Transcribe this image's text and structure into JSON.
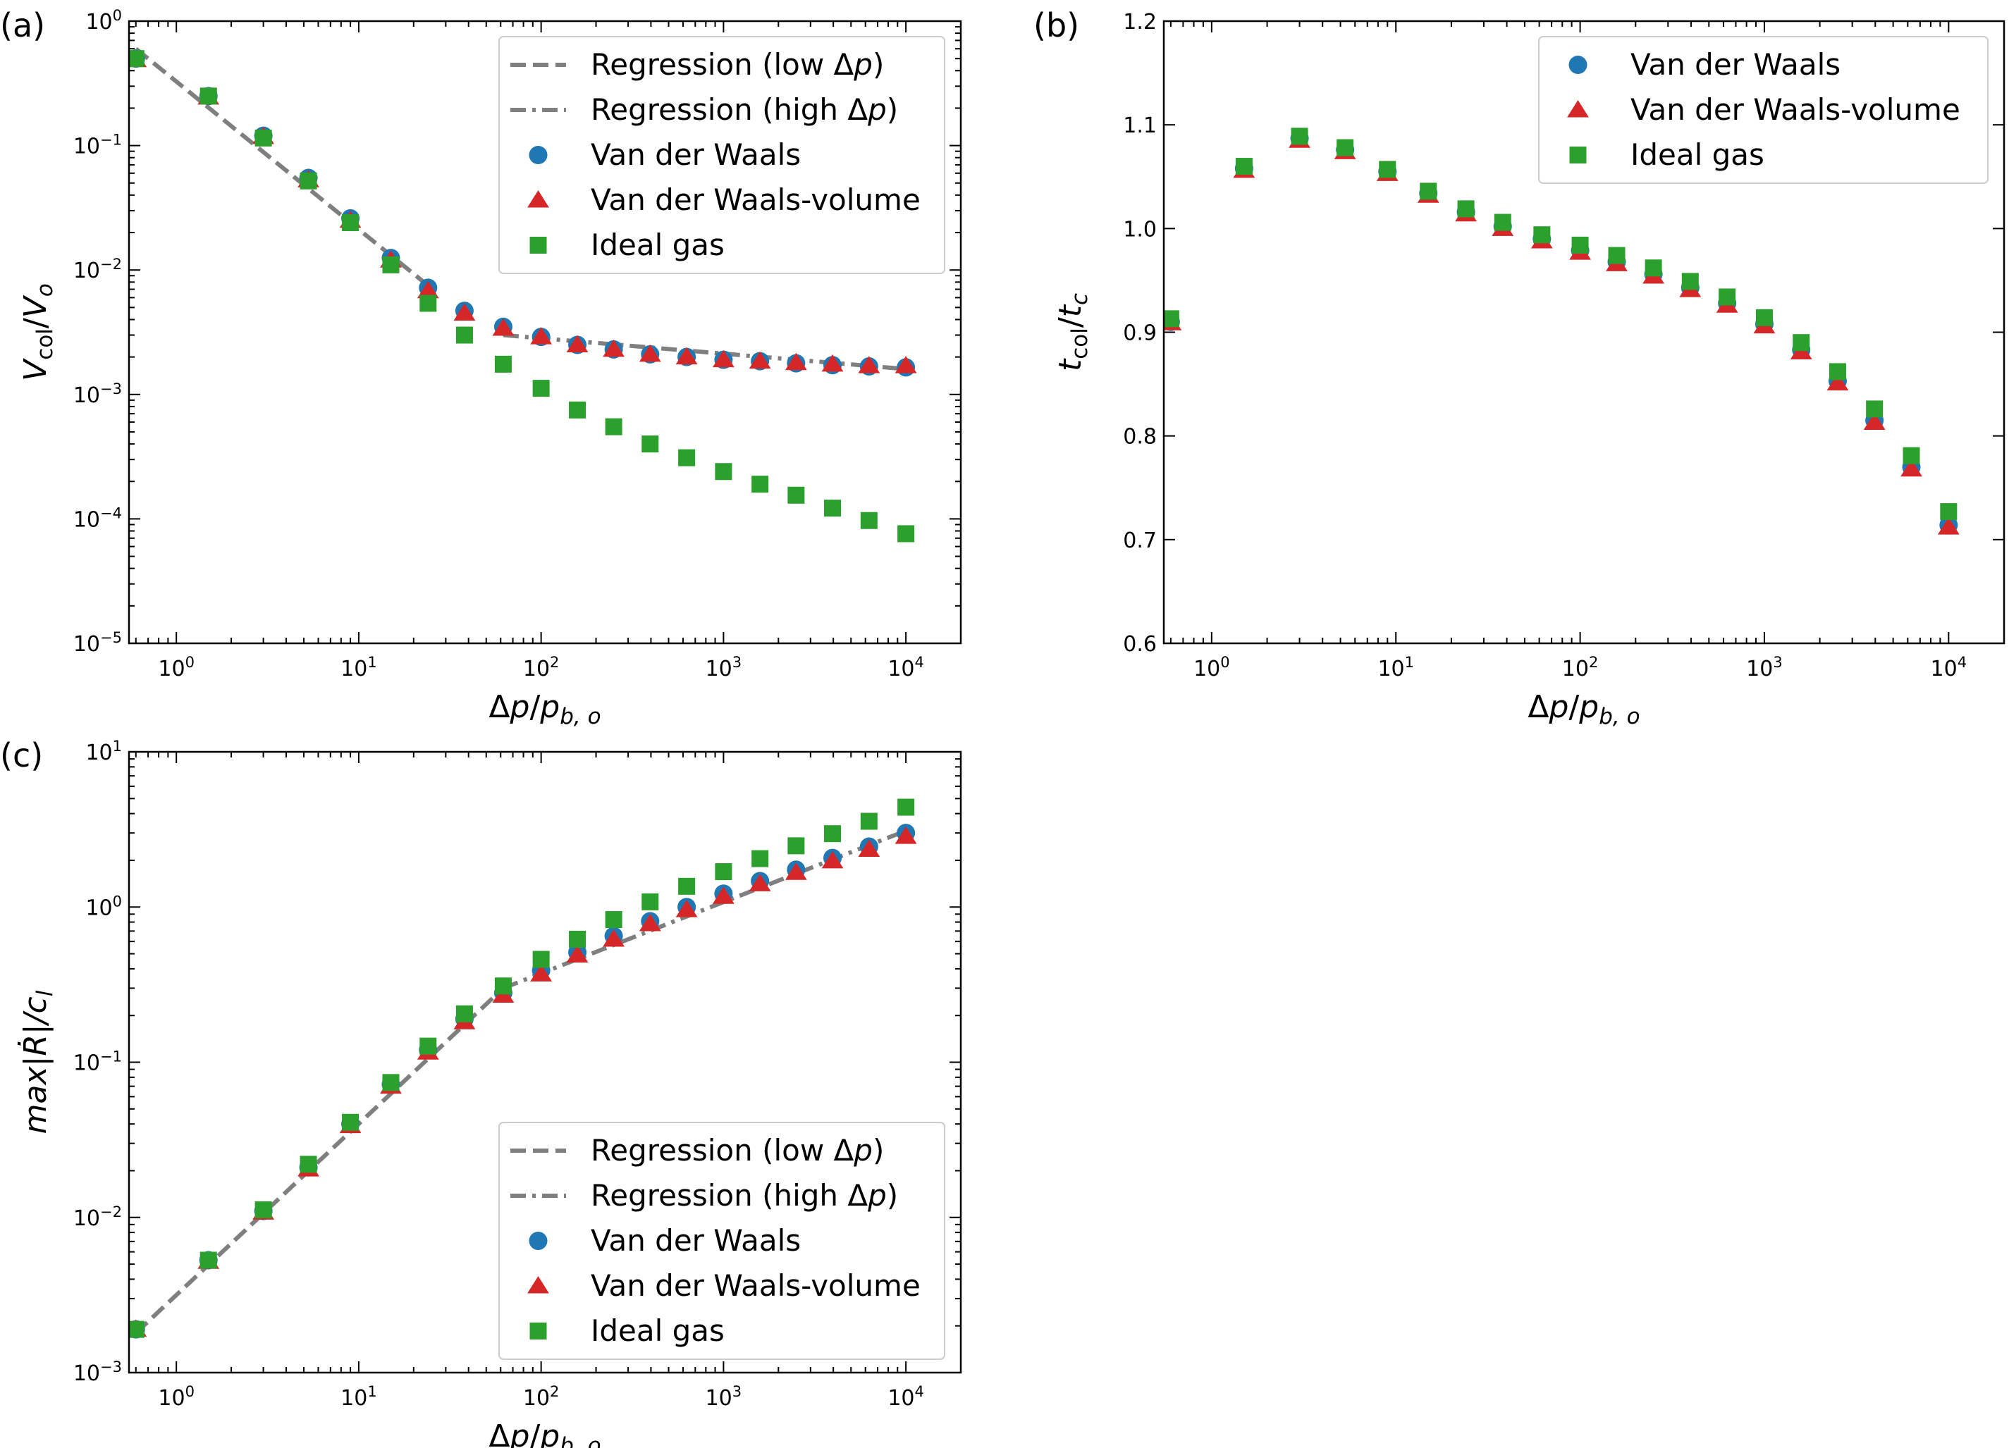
{
  "colors": {
    "vdw": "#1f77b4",
    "vdw_volume": "#d62728",
    "ideal": "#2ca02c",
    "regression": "#7f7f7f",
    "axes": "#000000",
    "legend_edge": "#cccccc"
  },
  "legend_labels": {
    "reg_low": "Regression (low Δp)",
    "reg_high": "Regression (high Δp)",
    "vdw": "Van der Waals",
    "vdw_volume": "Van der Waals-volume",
    "ideal": "Ideal gas"
  },
  "chart_data": [
    {
      "panel": "(a)",
      "type": "scatter",
      "xscale": "log",
      "yscale": "log",
      "xlim": [
        0.55,
        20000
      ],
      "ylim": [
        1e-05,
        1
      ],
      "x_ticks": [
        {
          "value": 1,
          "base": "10",
          "exp": "0"
        },
        {
          "value": 10,
          "base": "10",
          "exp": "1"
        },
        {
          "value": 100,
          "base": "10",
          "exp": "2"
        },
        {
          "value": 1000,
          "base": "10",
          "exp": "3"
        },
        {
          "value": 10000,
          "base": "10",
          "exp": "4"
        }
      ],
      "y_ticks": [
        {
          "value": 1e-05,
          "base": "10",
          "exp": "−5"
        },
        {
          "value": 0.0001,
          "base": "10",
          "exp": "−4"
        },
        {
          "value": 0.001,
          "base": "10",
          "exp": "−3"
        },
        {
          "value": 0.01,
          "base": "10",
          "exp": "−2"
        },
        {
          "value": 0.1,
          "base": "10",
          "exp": "−1"
        },
        {
          "value": 1,
          "base": "10",
          "exp": "0"
        }
      ],
      "xlabel": {
        "main": "Δp/p",
        "sub": "b, o"
      },
      "ylabel": {
        "main": "V",
        "sub1": "col",
        "mid": "/V",
        "sub2": "o"
      },
      "legend": {
        "position": "upper right",
        "entries": [
          "reg_low",
          "reg_high",
          "vdw",
          "vdw_volume",
          "ideal"
        ]
      },
      "x": [
        0.6,
        1.5,
        3.0,
        5.3,
        9.0,
        15,
        24,
        38,
        62,
        100,
        158,
        250,
        396,
        628,
        1000,
        1585,
        2500,
        3960,
        6280,
        10000
      ],
      "series": [
        {
          "key": "vdw",
          "marker": "circle",
          "values": [
            0.5,
            0.25,
            0.12,
            0.055,
            0.026,
            0.0125,
            0.0072,
            0.0047,
            0.0035,
            0.0029,
            0.0025,
            0.0023,
            0.0021,
            0.002,
            0.0019,
            0.00185,
            0.00178,
            0.00172,
            0.00168,
            0.00165
          ]
        },
        {
          "key": "vdw_volume",
          "marker": "triangle",
          "values": [
            0.49,
            0.245,
            0.118,
            0.053,
            0.025,
            0.012,
            0.0068,
            0.0045,
            0.0034,
            0.0029,
            0.0025,
            0.0023,
            0.0021,
            0.002,
            0.0019,
            0.00185,
            0.0018,
            0.00175,
            0.0017,
            0.0017
          ]
        },
        {
          "key": "ideal",
          "marker": "square",
          "values": [
            0.5,
            0.25,
            0.115,
            0.052,
            0.024,
            0.011,
            0.0054,
            0.003,
            0.00175,
            0.00112,
            0.00075,
            0.00055,
            0.0004,
            0.00031,
            0.00024,
            0.00019,
            0.000155,
            0.000122,
            9.7e-05,
            7.6e-05
          ]
        }
      ],
      "lines": [
        {
          "key": "reg_low",
          "dash": "dashed",
          "points": [
            [
              0.6,
              0.6
            ],
            [
              24,
              0.0075
            ]
          ]
        },
        {
          "key": "reg_high",
          "dash": "dashdot",
          "points": [
            [
              62,
              0.003
            ],
            [
              10000,
              0.0016
            ]
          ]
        }
      ]
    },
    {
      "panel": "(b)",
      "type": "scatter",
      "xscale": "log",
      "yscale": "linear",
      "xlim": [
        0.55,
        20000
      ],
      "ylim": [
        0.6,
        1.2
      ],
      "x_ticks": [
        {
          "value": 1,
          "base": "10",
          "exp": "0"
        },
        {
          "value": 10,
          "base": "10",
          "exp": "1"
        },
        {
          "value": 100,
          "base": "10",
          "exp": "2"
        },
        {
          "value": 1000,
          "base": "10",
          "exp": "3"
        },
        {
          "value": 10000,
          "base": "10",
          "exp": "4"
        }
      ],
      "y_ticks": [
        {
          "value": 0.6,
          "label": "0.6"
        },
        {
          "value": 0.7,
          "label": "0.7"
        },
        {
          "value": 0.8,
          "label": "0.8"
        },
        {
          "value": 0.9,
          "label": "0.9"
        },
        {
          "value": 1.0,
          "label": "1.0"
        },
        {
          "value": 1.1,
          "label": "1.1"
        },
        {
          "value": 1.2,
          "label": "1.2"
        }
      ],
      "xlabel": {
        "main": "Δp/p",
        "sub": "b, o"
      },
      "ylabel": {
        "main": "t",
        "sub1": "col",
        "mid": "/t",
        "sub2": "c"
      },
      "legend": {
        "position": "upper right",
        "entries": [
          "vdw",
          "vdw_volume",
          "ideal"
        ]
      },
      "x": [
        0.6,
        1.5,
        3.0,
        5.3,
        9.0,
        15,
        24,
        38,
        62,
        100,
        158,
        250,
        396,
        628,
        1000,
        1585,
        2500,
        3960,
        6280,
        10000
      ],
      "series": [
        {
          "key": "vdw",
          "marker": "circle",
          "values": [
            0.91,
            1.058,
            1.087,
            1.076,
            1.055,
            1.034,
            1.016,
            1.002,
            0.99,
            0.979,
            0.968,
            0.956,
            0.943,
            0.928,
            0.908,
            0.883,
            0.853,
            0.815,
            0.77,
            0.714
          ]
        },
        {
          "key": "vdw_volume",
          "marker": "triangle",
          "values": [
            0.909,
            1.056,
            1.085,
            1.074,
            1.053,
            1.032,
            1.014,
            1.0,
            0.988,
            0.977,
            0.966,
            0.954,
            0.941,
            0.926,
            0.906,
            0.881,
            0.851,
            0.813,
            0.768,
            0.712
          ]
        },
        {
          "key": "ideal",
          "marker": "square",
          "values": [
            0.913,
            1.06,
            1.089,
            1.078,
            1.057,
            1.036,
            1.019,
            1.006,
            0.994,
            0.984,
            0.974,
            0.962,
            0.949,
            0.934,
            0.914,
            0.89,
            0.862,
            0.826,
            0.781,
            0.727
          ]
        }
      ],
      "lines": []
    },
    {
      "panel": "(c)",
      "type": "scatter",
      "xscale": "log",
      "yscale": "log",
      "xlim": [
        0.55,
        20000
      ],
      "ylim": [
        0.001,
        10
      ],
      "x_ticks": [
        {
          "value": 1,
          "base": "10",
          "exp": "0"
        },
        {
          "value": 10,
          "base": "10",
          "exp": "1"
        },
        {
          "value": 100,
          "base": "10",
          "exp": "2"
        },
        {
          "value": 1000,
          "base": "10",
          "exp": "3"
        },
        {
          "value": 10000,
          "base": "10",
          "exp": "4"
        }
      ],
      "y_ticks": [
        {
          "value": 0.001,
          "base": "10",
          "exp": "−3"
        },
        {
          "value": 0.01,
          "base": "10",
          "exp": "−2"
        },
        {
          "value": 0.1,
          "base": "10",
          "exp": "−1"
        },
        {
          "value": 1,
          "base": "10",
          "exp": "0"
        },
        {
          "value": 10,
          "base": "10",
          "exp": "1"
        }
      ],
      "xlabel": {
        "main": "Δp/p",
        "sub": "b, o"
      },
      "ylabel": {
        "main": "max|Ṙ|/c",
        "sub": "l"
      },
      "legend": {
        "position": "lower right",
        "entries": [
          "reg_low",
          "reg_high",
          "vdw",
          "vdw_volume",
          "ideal"
        ]
      },
      "x": [
        0.6,
        1.5,
        3.0,
        5.3,
        9.0,
        15,
        24,
        38,
        62,
        100,
        158,
        250,
        396,
        628,
        1000,
        1585,
        2500,
        3960,
        6280,
        10000
      ],
      "series": [
        {
          "key": "vdw",
          "marker": "circle",
          "values": [
            0.0019,
            0.0053,
            0.011,
            0.021,
            0.04,
            0.072,
            0.12,
            0.19,
            0.28,
            0.39,
            0.51,
            0.65,
            0.81,
            1.0,
            1.22,
            1.47,
            1.74,
            2.07,
            2.45,
            3.0
          ]
        },
        {
          "key": "vdw_volume",
          "marker": "triangle",
          "values": [
            0.0019,
            0.0052,
            0.0108,
            0.0205,
            0.039,
            0.07,
            0.116,
            0.182,
            0.27,
            0.37,
            0.49,
            0.62,
            0.78,
            0.96,
            1.17,
            1.41,
            1.67,
            1.98,
            2.35,
            2.85
          ]
        },
        {
          "key": "ideal",
          "marker": "square",
          "values": [
            0.0019,
            0.0053,
            0.0112,
            0.022,
            0.041,
            0.074,
            0.127,
            0.205,
            0.31,
            0.46,
            0.62,
            0.83,
            1.08,
            1.36,
            1.69,
            2.05,
            2.48,
            2.97,
            3.57,
            4.4
          ]
        }
      ],
      "lines": [
        {
          "key": "reg_low",
          "dash": "dashed",
          "points": [
            [
              0.6,
              0.0018
            ],
            [
              62,
              0.3
            ]
          ]
        },
        {
          "key": "reg_high",
          "dash": "dashdot",
          "points": [
            [
              62,
              0.3
            ],
            [
              10000,
              3.1
            ]
          ]
        }
      ]
    }
  ]
}
